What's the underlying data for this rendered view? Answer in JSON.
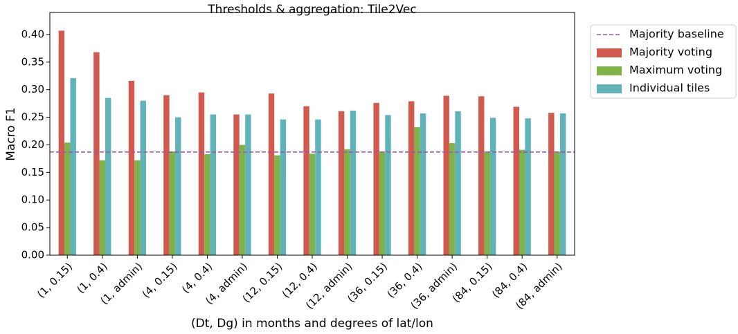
{
  "chart_data": {
    "type": "bar",
    "title": "Thresholds & aggregation: Tile2Vec",
    "x_label": "(Dt, Dg) in months and degrees of lat/lon",
    "y_label": "Macro F1",
    "categories": [
      "(1, 0.15)",
      "(1, 0.4)",
      "(1, admin)",
      "(4, 0.15)",
      "(4, 0.4)",
      "(4, admin)",
      "(12, 0.15)",
      "(12, 0.4)",
      "(12, admin)",
      "(36, 0.15)",
      "(36, 0.4)",
      "(36, admin)",
      "(84, 0.15)",
      "(84, 0.4)",
      "(84, admin)"
    ],
    "series": [
      {
        "name": "Majority voting",
        "color": "#d1594d",
        "values": [
          0.407,
          0.368,
          0.316,
          0.29,
          0.295,
          0.255,
          0.293,
          0.27,
          0.261,
          0.276,
          0.279,
          0.289,
          0.288,
          0.269,
          0.258
        ]
      },
      {
        "name": "Maximum voting",
        "color": "#7fb24a",
        "values": [
          0.204,
          0.172,
          0.172,
          0.188,
          0.183,
          0.2,
          0.181,
          0.184,
          0.192,
          0.188,
          0.232,
          0.203,
          0.188,
          0.191,
          0.188
        ]
      },
      {
        "name": "Individual tiles",
        "color": "#5fb3b9",
        "values": [
          0.321,
          0.285,
          0.28,
          0.25,
          0.255,
          0.255,
          0.246,
          0.246,
          0.262,
          0.254,
          0.257,
          0.261,
          0.249,
          0.248,
          0.257
        ]
      }
    ],
    "baseline": {
      "name": "Majority baseline",
      "value": 0.187,
      "color": "#9b59a6"
    },
    "ylim": [
      0,
      0.44
    ],
    "yticks": [
      {
        "value": 0,
        "label": "0.00"
      },
      {
        "value": 0.05,
        "label": "0.05"
      },
      {
        "value": 0.1,
        "label": "0.10"
      },
      {
        "value": 0.15,
        "label": "0.15"
      },
      {
        "value": 0.2,
        "label": "0.20"
      },
      {
        "value": 0.25,
        "label": "0.25"
      },
      {
        "value": 0.3,
        "label": "0.30"
      },
      {
        "value": 0.35,
        "label": "0.35"
      },
      {
        "value": 0.4,
        "label": "0.40"
      }
    ],
    "legend_position": "outside-right"
  }
}
